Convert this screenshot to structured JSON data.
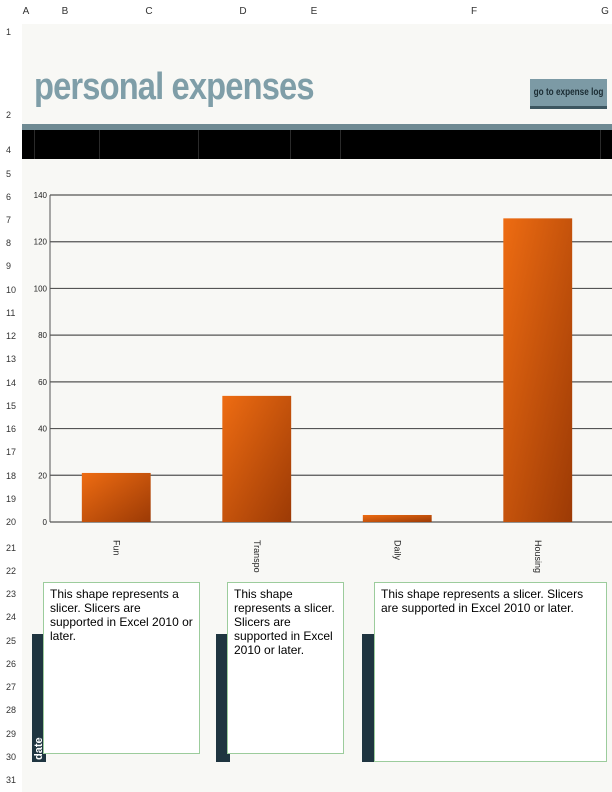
{
  "columns": [
    "A",
    "B",
    "C",
    "D",
    "E",
    "F",
    "G"
  ],
  "rows": [
    "1",
    "2",
    "4",
    "5",
    "6",
    "7",
    "8",
    "9",
    "10",
    "11",
    "12",
    "13",
    "14",
    "15",
    "16",
    "17",
    "18",
    "19",
    "20",
    "21",
    "22",
    "23",
    "24",
    "25",
    "26",
    "27",
    "28",
    "29",
    "30",
    "31"
  ],
  "title": "personal expenses",
  "goto_button_label": "go to expense log",
  "chart_data": {
    "type": "bar",
    "title": "",
    "xlabel": "",
    "ylabel": "",
    "categories": [
      "Fun",
      "Transpo",
      "Daily",
      "Housing"
    ],
    "values": [
      21,
      54,
      3,
      130
    ],
    "ylim": [
      0,
      140
    ],
    "yticks": [
      0,
      20,
      40,
      60,
      80,
      100,
      120,
      140
    ],
    "grid": true,
    "bar_color": "#e0620f"
  },
  "slicers": [
    {
      "text": "This shape represents a slicer. Slicers are supported in Excel 2010 or later.",
      "tab_label": "date"
    },
    {
      "text": "This shape represents a slicer. Slicers are supported in Excel 2010 or later.",
      "tab_label": ""
    },
    {
      "text": "This shape represents a slicer. Slicers are supported in Excel 2010 or later.",
      "tab_label": ""
    }
  ]
}
